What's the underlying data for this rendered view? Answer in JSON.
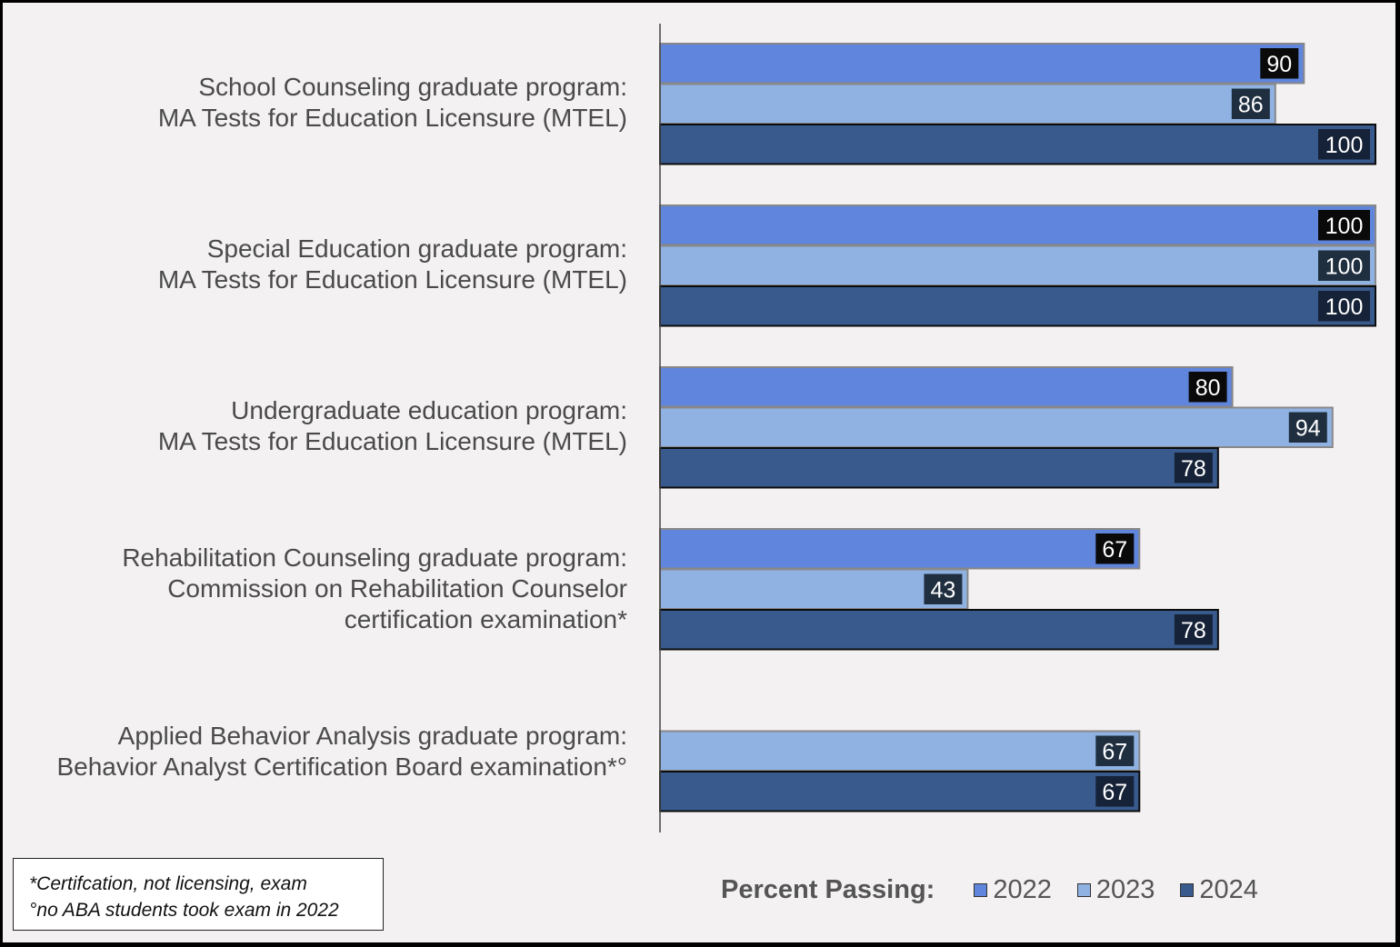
{
  "chart_data": {
    "type": "bar",
    "orientation": "horizontal",
    "categories": [
      [
        "School Counseling graduate program:",
        "MA Tests for Education Licensure (MTEL)"
      ],
      [
        "Special Education graduate program:",
        "MA Tests for Education Licensure (MTEL)"
      ],
      [
        "Undergraduate education program:",
        "MA Tests for Education Licensure (MTEL)"
      ],
      [
        "Rehabilitation Counseling graduate program:",
        "Commission on Rehabilitation Counselor",
        "certification examination*"
      ],
      [
        "Applied Behavior Analysis graduate program:",
        "Behavior Analyst Certification Board examination*°"
      ]
    ],
    "series": [
      {
        "name": "2022",
        "color": "#5f85dc",
        "values": [
          90,
          100,
          80,
          67,
          null
        ]
      },
      {
        "name": "2023",
        "color": "#8fb2e3",
        "values": [
          86,
          100,
          94,
          43,
          67
        ]
      },
      {
        "name": "2024",
        "color": "#385a8c",
        "values": [
          100,
          100,
          78,
          78,
          67
        ]
      }
    ],
    "xlim": [
      0,
      100
    ],
    "grid": false,
    "legend": {
      "title": "Percent Passing:",
      "position": "bottom-right"
    },
    "footnotes": [
      "*Certifcation, not licensing, exam",
      "°no ABA students took exam in 2022"
    ]
  }
}
